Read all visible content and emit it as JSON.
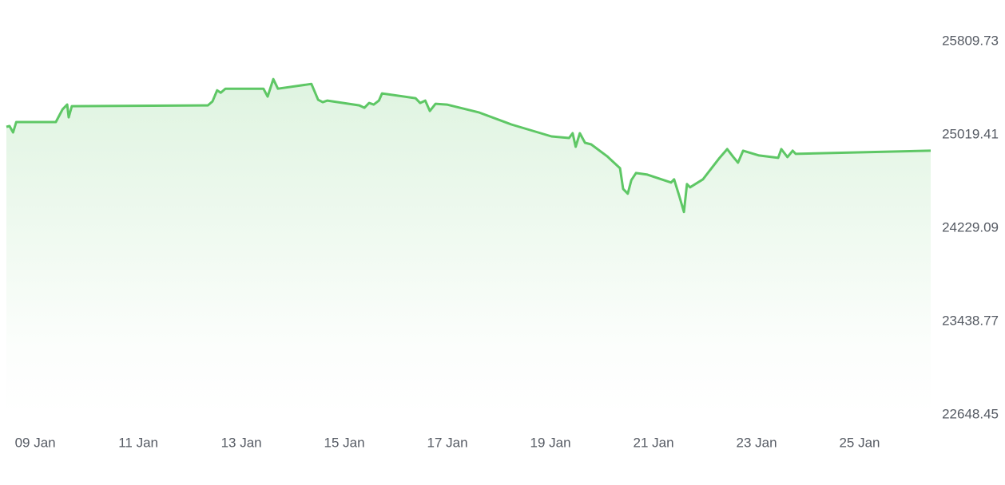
{
  "chart_data": {
    "type": "area",
    "x": [
      8.44,
      8.5,
      8.57,
      8.63,
      9.4,
      9.53,
      9.62,
      9.65,
      9.71,
      12.35,
      12.44,
      12.53,
      12.6,
      12.69,
      13.43,
      13.51,
      13.62,
      13.71,
      14.36,
      14.49,
      14.58,
      14.67,
      15.29,
      15.39,
      15.48,
      15.57,
      15.67,
      15.73,
      16.38,
      16.47,
      16.57,
      16.66,
      16.77,
      16.99,
      17.62,
      18.24,
      19.02,
      19.36,
      19.43,
      19.49,
      19.57,
      19.67,
      19.79,
      20.1,
      20.35,
      20.41,
      20.5,
      20.57,
      20.66,
      20.88,
      21.34,
      21.4,
      21.5,
      21.59,
      21.65,
      21.71,
      21.96,
      22.27,
      22.43,
      22.55,
      22.64,
      22.74,
      23.05,
      23.42,
      23.48,
      23.6,
      23.7,
      23.76,
      25.06,
      26.38
    ],
    "values": [
      25086.7,
      25093.5,
      25039.6,
      25127.2,
      25127.2,
      25234.9,
      25275.4,
      25167.6,
      25261.9,
      25268.7,
      25302.3,
      25396.6,
      25376.4,
      25410.1,
      25410.1,
      25342.7,
      25490.9,
      25410.1,
      25450.5,
      25315.8,
      25295.6,
      25309.0,
      25268.7,
      25248.4,
      25288.9,
      25275.4,
      25309.0,
      25369.7,
      25329.3,
      25288.9,
      25309.0,
      25221.5,
      25282.1,
      25275.4,
      25208.0,
      25107.0,
      25005.9,
      24992.5,
      25032.9,
      24918.3,
      25032.9,
      24952.1,
      24938.6,
      24837.5,
      24736.5,
      24561.4,
      24521.0,
      24635.5,
      24696.1,
      24682.6,
      24615.3,
      24642.2,
      24500.8,
      24366.0,
      24601.8,
      24574.9,
      24642.2,
      24817.3,
      24898.2,
      24830.8,
      24783.7,
      24884.7,
      24844.3,
      24824.1,
      24898.2,
      24830.8,
      24884.7,
      24857.7,
      24871.2,
      24884.7
    ],
    "color": "#5ec765",
    "xlim": [
      8.44,
      26.38
    ],
    "xticks": [
      {
        "value": 9,
        "label": "09 Jan"
      },
      {
        "value": 11,
        "label": "11 Jan"
      },
      {
        "value": 13,
        "label": "13 Jan"
      },
      {
        "value": 15,
        "label": "15 Jan"
      },
      {
        "value": 17,
        "label": "17 Jan"
      },
      {
        "value": 19,
        "label": "19 Jan"
      },
      {
        "value": 21,
        "label": "21 Jan"
      },
      {
        "value": 23,
        "label": "23 Jan"
      },
      {
        "value": 25,
        "label": "25 Jan"
      }
    ],
    "ylim": [
      22648.45,
      25809.73
    ],
    "yticks": [
      22648.45,
      23438.77,
      24229.09,
      25019.41,
      25809.73
    ],
    "grid": false
  }
}
